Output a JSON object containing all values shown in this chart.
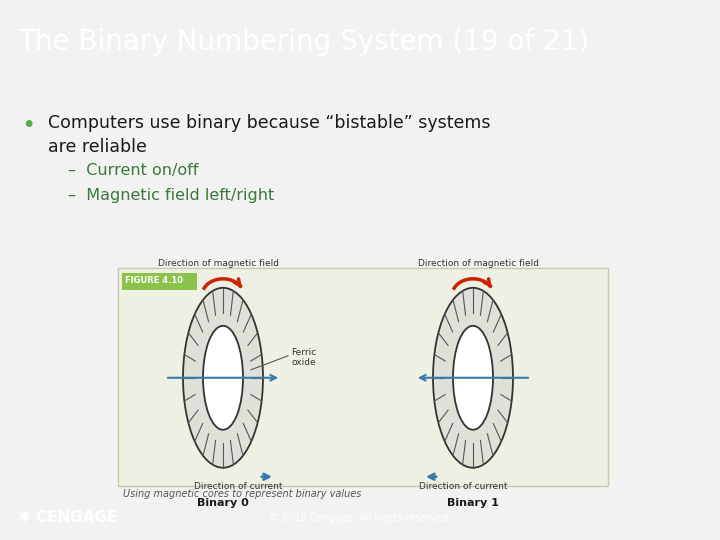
{
  "title": "The Binary Numbering System (19 of 21)",
  "title_bg": "#6d8a96",
  "title_color": "#ffffff",
  "title_fontsize": 20,
  "body_bg": "#f2f2f2",
  "bullet_color": "#5aab4e",
  "bullet_text_line1": "Computers use binary because “bistable” systems",
  "bullet_text_line2": "are reliable",
  "sub1": "Current on/off",
  "sub2": "Magnetic field left/right",
  "sub_color": "#3a7a3a",
  "text_color": "#1a1a1a",
  "footer_bg": "#4caf50",
  "footer_text": "© 2018 Cengage. All rights reserved.",
  "footer_logo": "CENGAGE",
  "figure_bg": "#eef0e4",
  "figure_border": "#c8c8a8",
  "figure_label": "FIGURE 4.10",
  "figure_label_bg": "#8bc34a",
  "caption": "Using magnetic cores to represent binary values",
  "binary0_label": "Binary 0",
  "binary1_label": "Binary 1",
  "dir_magnetic_field": "Direction of magnetic field",
  "dir_current": "Direction of current",
  "ferric_oxide": "Ferric\noxide",
  "arrow_color": "#3a7aaa",
  "red_arrow_color": "#cc2200",
  "toroid_fill": "#e0e0d8",
  "toroid_edge": "#333333",
  "tick_color": "#555555"
}
